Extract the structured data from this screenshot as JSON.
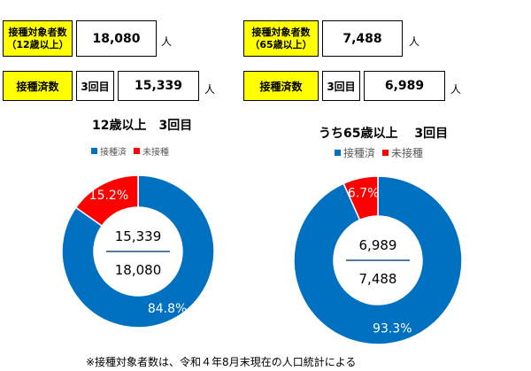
{
  "panels": [
    {
      "target_label_line1": "接種対象者数",
      "target_label_line2": "（12歳以上）",
      "target_value": "18,080",
      "unit": "人",
      "done_label": "接種済数",
      "round_label": "3回目",
      "done_value": "15,339"
    },
    {
      "target_label_line1": "接種対象者数",
      "target_label_line2": "（65歳以上）",
      "target_value": "7,488",
      "unit": "人",
      "done_label": "接種済数",
      "round_label": "3回目",
      "done_value": "6,989"
    }
  ],
  "chart_data": [
    {
      "type": "pie",
      "title": "12歳以上　3回目",
      "legend": [
        "接種済",
        "未接種"
      ],
      "colors": [
        "#0070c0",
        "#ff0000"
      ],
      "values": [
        84.8,
        15.2
      ],
      "value_labels": [
        "84.8%",
        "15.2%"
      ],
      "center_top": "15,339",
      "center_bottom": "18,080"
    },
    {
      "type": "pie",
      "title": "うち65歳以上　 3回目",
      "legend": [
        "接種済",
        "未接種"
      ],
      "colors": [
        "#0070c0",
        "#ff0000"
      ],
      "values": [
        93.3,
        6.7
      ],
      "value_labels": [
        "93.3%",
        "6.7%"
      ],
      "center_top": "6,989",
      "center_bottom": "7,488"
    }
  ],
  "footnote": "※接種対象者数は、令和４年8月末現在の人口統計による"
}
